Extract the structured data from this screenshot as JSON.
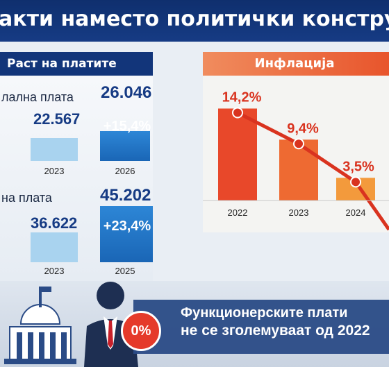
{
  "header": {
    "title": "акти наместо политички конструкци"
  },
  "wages_panel": {
    "tab_label": "Раст на платите",
    "charts": [
      {
        "label": "лална плата",
        "year_a": "2023",
        "value_a": "22.567",
        "year_b": "2026",
        "value_b": "26.046",
        "growth": "+15,4%"
      },
      {
        "label": "на плата",
        "year_a": "2023",
        "value_a": "36.622",
        "year_b": "2025",
        "value_b": "45.202",
        "growth": "+23,4%"
      }
    ]
  },
  "inflation_panel": {
    "tab_label": "Инфлација"
  },
  "chart_data": [
    {
      "type": "bar",
      "categories": [
        "2023",
        "2026"
      ],
      "values": [
        22567,
        26046
      ],
      "annotations": [
        "+15,4%"
      ]
    },
    {
      "type": "bar",
      "categories": [
        "2023",
        "2025"
      ],
      "values": [
        36622,
        45202
      ],
      "annotations": [
        "+23,4%"
      ]
    },
    {
      "type": "bar",
      "categories": [
        "2022",
        "2023",
        "2024"
      ],
      "values": [
        14.2,
        9.4,
        3.5
      ],
      "data_labels": [
        "14,2%",
        "9,4%",
        "3,5%"
      ]
    }
  ],
  "bottom": {
    "badge": "0%",
    "line1": "Функционерските плати",
    "line2": "не се зголемуваат од 2022"
  },
  "colors": {
    "navy": "#163b84",
    "orange": "#e8552c",
    "bar_light": "#a9d3ef",
    "bar_dark": "#1a66b6",
    "red_badge": "#e53a2a"
  }
}
